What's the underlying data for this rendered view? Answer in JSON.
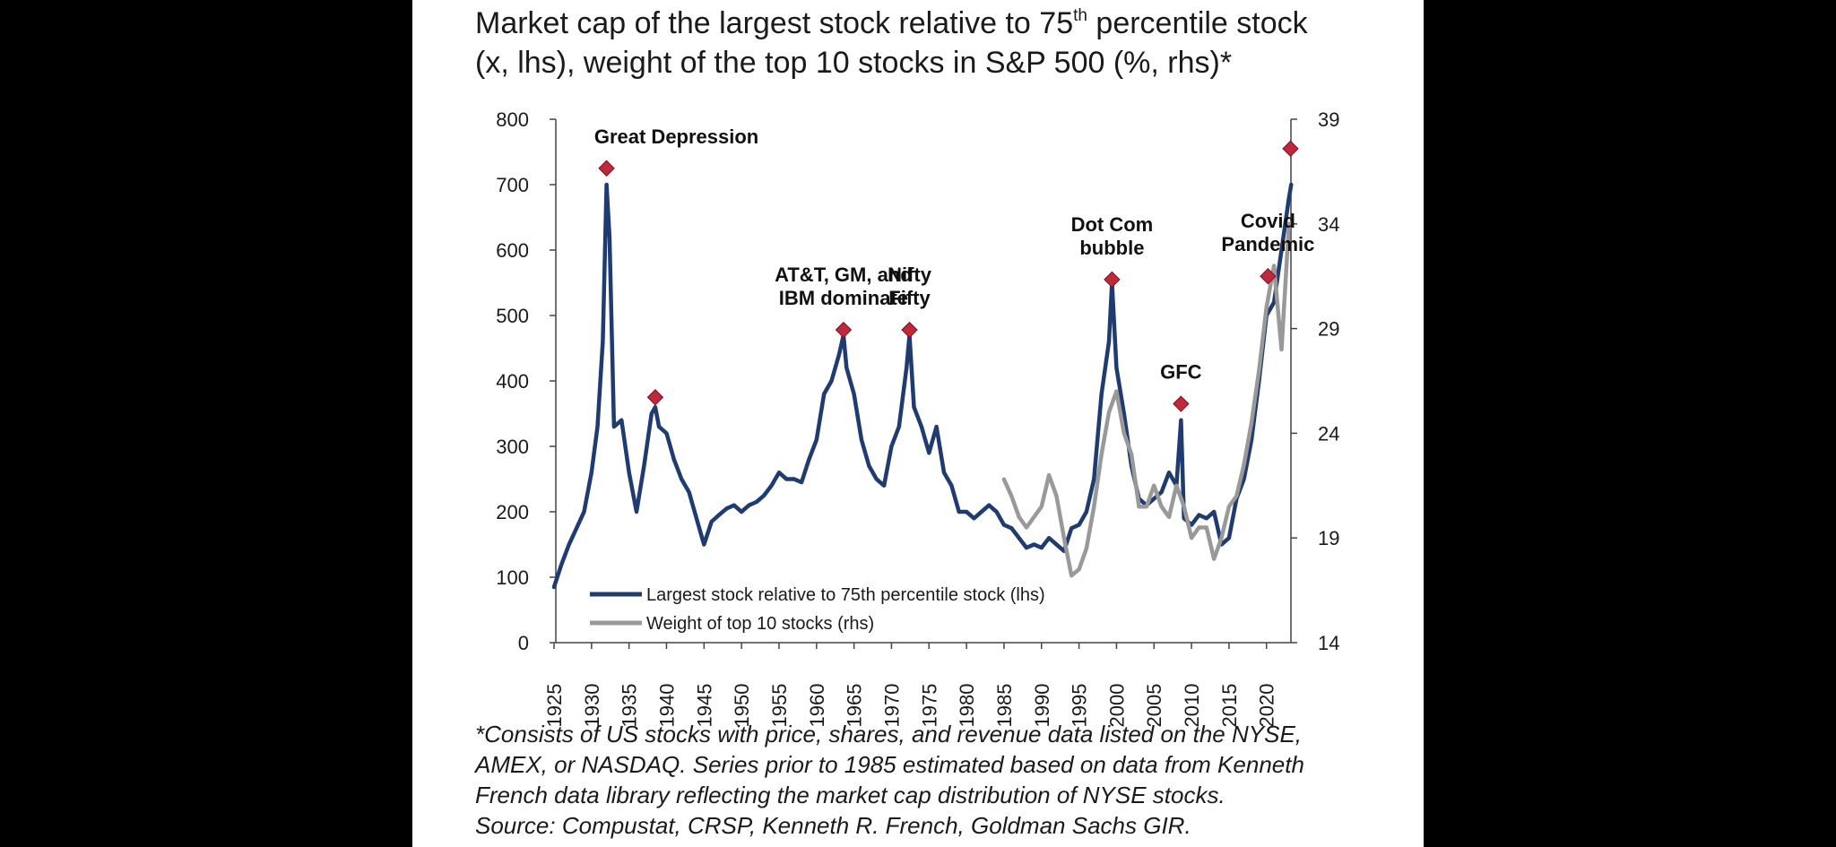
{
  "title": {
    "line1_pre": "Market cap of the largest stock relative to 75",
    "line1_sup": "th",
    "line1_post": " percentile stock",
    "line2": "(x, lhs), weight of the top 10 stocks in S&P 500 (%, rhs)*"
  },
  "footnote": [
    "*Consists of US stocks with price, shares, and revenue data listed on the NYSE,",
    "AMEX, or NASDAQ. Series prior to 1985 estimated based on data from Kenneth",
    "French data library reflecting the market cap distribution of NYSE stocks.",
    "Source: Compustat, CRSP, Kenneth R. French, Goldman Sachs GIR."
  ],
  "chart_data": {
    "type": "line",
    "title": "Market cap of the largest stock relative to 75th percentile stock (x, lhs), weight of the top 10 stocks in S&P 500 (%, rhs)*",
    "xlabel": "",
    "ylabel_left": "",
    "ylabel_right": "",
    "xlim": [
      1925,
      2023.5
    ],
    "ylim_left": [
      0,
      800
    ],
    "ylim_right": [
      14,
      39
    ],
    "x_ticks": [
      "1925",
      "1930",
      "1935",
      "1940",
      "1945",
      "1950",
      "1955",
      "1960",
      "1965",
      "1970",
      "1975",
      "1980",
      "1985",
      "1990",
      "1995",
      "2000",
      "2005",
      "2010",
      "2015",
      "2020"
    ],
    "y_left_ticks": [
      "0",
      "100",
      "200",
      "300",
      "400",
      "500",
      "600",
      "700",
      "800"
    ],
    "y_right_ticks": [
      "14",
      "19",
      "24",
      "29",
      "34",
      "39"
    ],
    "grid": false,
    "legend": "bottom-left",
    "series": [
      {
        "name": "Largest stock relative to 75th percentile stock (lhs)",
        "axis": "left",
        "color": "#1f3b70",
        "x": [
          1925,
          1926,
          1927,
          1928,
          1929,
          1930,
          1930.8,
          1931.5,
          1932,
          1932.4,
          1933,
          1934,
          1935,
          1936,
          1937,
          1938,
          1938.5,
          1939,
          1940,
          1941,
          1942,
          1943,
          1944,
          1945,
          1946,
          1947,
          1948,
          1949,
          1950,
          1951,
          1952,
          1953,
          1954,
          1955,
          1956,
          1957,
          1958,
          1959,
          1960,
          1961,
          1962,
          1963,
          1963.6,
          1964,
          1965,
          1966,
          1967,
          1968,
          1969,
          1970,
          1971,
          1972,
          1972.4,
          1973,
          1974,
          1975,
          1976,
          1977,
          1978,
          1979,
          1980,
          1981,
          1982,
          1983,
          1984,
          1985,
          1986,
          1987,
          1988,
          1989,
          1990,
          1991,
          1992,
          1993,
          1994,
          1995,
          1996,
          1997,
          1998,
          1999,
          1999.4,
          2000,
          2001,
          2002,
          2003,
          2004,
          2005,
          2006,
          2007,
          2008,
          2008.6,
          2009,
          2010,
          2011,
          2012,
          2013,
          2014,
          2015,
          2016,
          2017,
          2018,
          2019,
          2020,
          2021,
          2022,
          2023,
          2023.3
        ],
        "values": [
          85,
          120,
          150,
          175,
          200,
          260,
          330,
          460,
          700,
          620,
          330,
          340,
          260,
          200,
          270,
          350,
          360,
          330,
          320,
          280,
          250,
          230,
          190,
          150,
          185,
          195,
          205,
          210,
          200,
          210,
          215,
          225,
          240,
          260,
          250,
          250,
          245,
          280,
          310,
          380,
          400,
          440,
          470,
          420,
          380,
          310,
          270,
          250,
          240,
          300,
          330,
          420,
          470,
          360,
          330,
          290,
          330,
          260,
          240,
          200,
          200,
          190,
          200,
          210,
          200,
          180,
          175,
          160,
          145,
          150,
          145,
          160,
          150,
          140,
          175,
          180,
          200,
          250,
          380,
          460,
          550,
          420,
          350,
          270,
          220,
          210,
          220,
          230,
          260,
          240,
          340,
          190,
          180,
          195,
          190,
          200,
          150,
          160,
          220,
          250,
          310,
          400,
          500,
          520,
          600,
          680,
          700
        ]
      },
      {
        "name": "Weight of top 10 stocks (rhs)",
        "axis": "right",
        "color": "#999999",
        "x": [
          1985,
          1986,
          1987,
          1988,
          1989,
          1990,
          1991,
          1992,
          1993,
          1994,
          1995,
          1996,
          1997,
          1998,
          1999,
          2000,
          2001,
          2002,
          2003,
          2004,
          2005,
          2006,
          2007,
          2008,
          2009,
          2010,
          2011,
          2012,
          2013,
          2014,
          2015,
          2016,
          2017,
          2018,
          2019,
          2020,
          2021,
          2022,
          2023
        ],
        "values": [
          21.8,
          21,
          20,
          19.5,
          20,
          20.5,
          22,
          21,
          19,
          17.2,
          17.5,
          18.5,
          20.5,
          23,
          25,
          26,
          24,
          23,
          20.5,
          20.5,
          21.5,
          20.5,
          20,
          21.5,
          20.5,
          19,
          19.5,
          19.5,
          18,
          19,
          20.5,
          21,
          22.5,
          24.5,
          27,
          30,
          32,
          28,
          34
        ]
      }
    ],
    "annotations": [
      {
        "text": [
          "Great Depression"
        ],
        "x": 1932,
        "y": 725,
        "axis": "left"
      },
      {
        "text": [],
        "x": 1938.5,
        "y": 375,
        "axis": "left"
      },
      {
        "text": [
          "AT&T, GM, and",
          "IBM dominate"
        ],
        "x": 1963.6,
        "y": 478,
        "axis": "left"
      },
      {
        "text": [
          "Nifty",
          "Fifty"
        ],
        "x": 1972.4,
        "y": 478,
        "axis": "left"
      },
      {
        "text": [
          "Dot Com",
          "bubble"
        ],
        "x": 1999.4,
        "y": 555,
        "axis": "left"
      },
      {
        "text": [
          "GFC"
        ],
        "x": 2008.6,
        "y": 365,
        "axis": "left"
      },
      {
        "text": [
          "Covid",
          "Pandemic"
        ],
        "x": 2020.2,
        "y": 560,
        "axis": "left"
      },
      {
        "text": [],
        "x": 2023.2,
        "y": 755,
        "axis": "left"
      }
    ],
    "marker_color": "#c0283c"
  }
}
